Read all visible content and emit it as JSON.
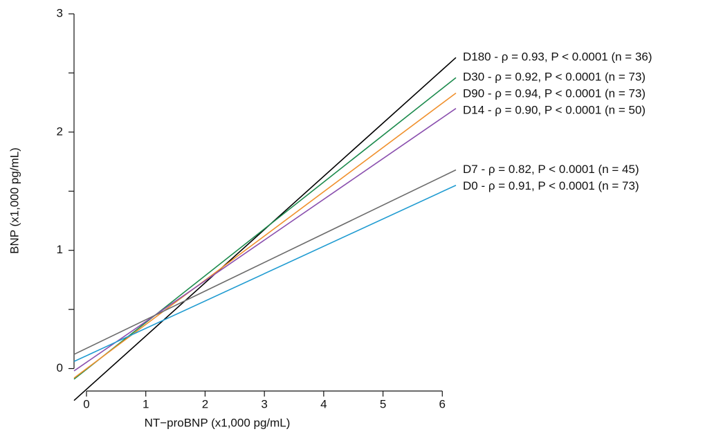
{
  "chart_data": {
    "type": "line",
    "x_label": "NT−proBNP (x1,000 pg/mL)",
    "y_label": "BNP (x1,000 pg/mL)",
    "x": [
      -0.21,
      6.23
    ],
    "xlim": [
      -0.21,
      6.23
    ],
    "xticks": [
      0,
      1,
      2,
      3,
      4,
      5,
      6
    ],
    "ylim": [
      -0.19,
      3
    ],
    "yticks": [
      0,
      1,
      2,
      3
    ],
    "yminor_ticks": [
      0.5,
      1.5,
      2.5
    ],
    "series": [
      {
        "name": "D180 - ρ = 0.93, P < 0.0001 (n = 36)",
        "color": "#000000",
        "values": [
          -0.27,
          2.63
        ]
      },
      {
        "name": "D30 - ρ = 0.92, P < 0.0001 (n = 73)",
        "color": "#1b8a4c",
        "values": [
          -0.09,
          2.46
        ]
      },
      {
        "name": "D90 - ρ = 0.94, P < 0.0001 (n = 73)",
        "color": "#f0902c",
        "values": [
          -0.08,
          2.33
        ]
      },
      {
        "name": "D14 - ρ = 0.90, P < 0.0001 (n = 50)",
        "color": "#8a4fae",
        "values": [
          -0.02,
          2.2
        ]
      },
      {
        "name": "D7 - ρ = 0.82, P < 0.0001 (n = 45)",
        "color": "#6b6b6b",
        "values": [
          0.12,
          1.68
        ]
      },
      {
        "name": "D0 - ρ = 0.91, P < 0.0001 (n = 73)",
        "color": "#1f9bd1",
        "values": [
          0.06,
          1.55
        ]
      }
    ]
  }
}
